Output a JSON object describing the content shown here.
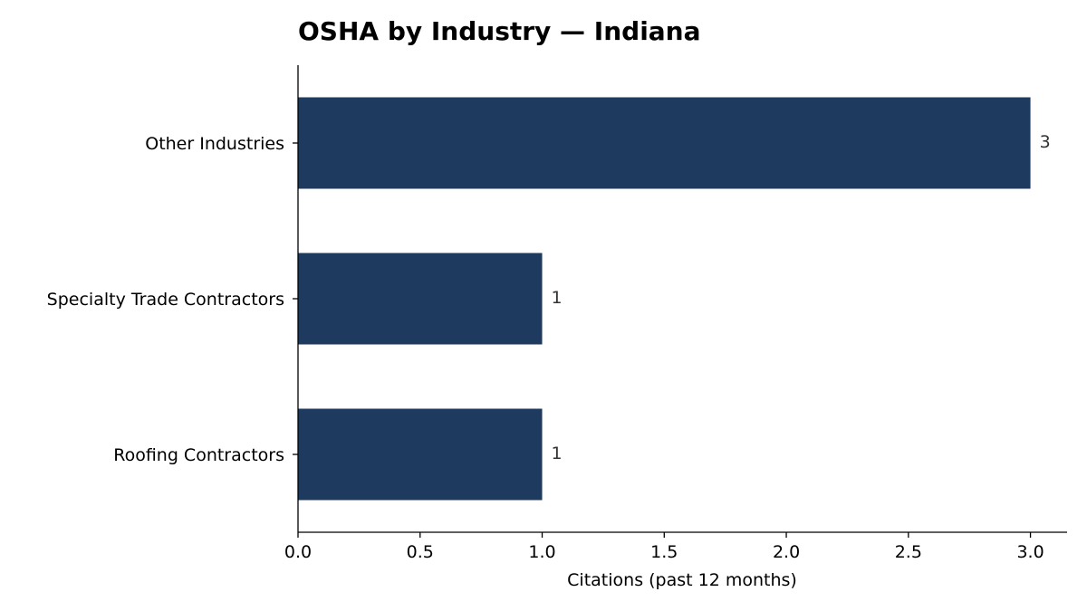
{
  "chart_data": {
    "type": "bar",
    "orientation": "horizontal",
    "title": "OSHA by Industry — Indiana",
    "xlabel": "Citations (past 12 months)",
    "ylabel": "",
    "categories": [
      "Other Industries",
      "Specialty Trade Contractors",
      "Roofing Contractors"
    ],
    "values": [
      3,
      1,
      1
    ],
    "data_labels": [
      "3",
      "1",
      "1"
    ],
    "xlim": [
      0,
      3.15
    ],
    "xticks": [
      0.0,
      0.5,
      1.0,
      1.5,
      2.0,
      2.5,
      3.0
    ],
    "xtick_labels": [
      "0.0",
      "0.5",
      "1.0",
      "1.5",
      "2.0",
      "2.5",
      "3.0"
    ],
    "bar_color": "#1f3a5f",
    "grid": false,
    "legend": "none"
  }
}
